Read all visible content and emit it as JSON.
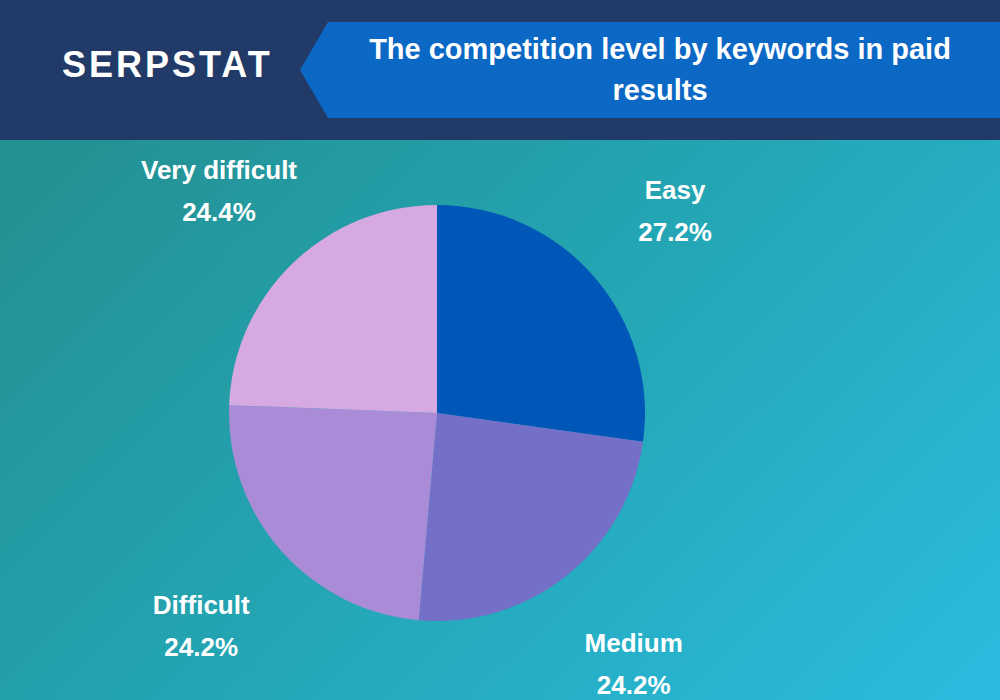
{
  "logo": "SERPSTAT",
  "chart_data": {
    "type": "pie",
    "title": "The competition level by keywords in paid results",
    "categories": [
      "Easy",
      "Medium",
      "Difficult",
      "Very difficult"
    ],
    "values": [
      27.2,
      24.2,
      24.2,
      24.4
    ],
    "value_labels": [
      "27.2%",
      "24.2%",
      "24.2%",
      "24.4%"
    ],
    "colors": [
      "#0057b7",
      "#7470c8",
      "#a98bd7",
      "#d6a9e2"
    ],
    "data_labels": true
  }
}
